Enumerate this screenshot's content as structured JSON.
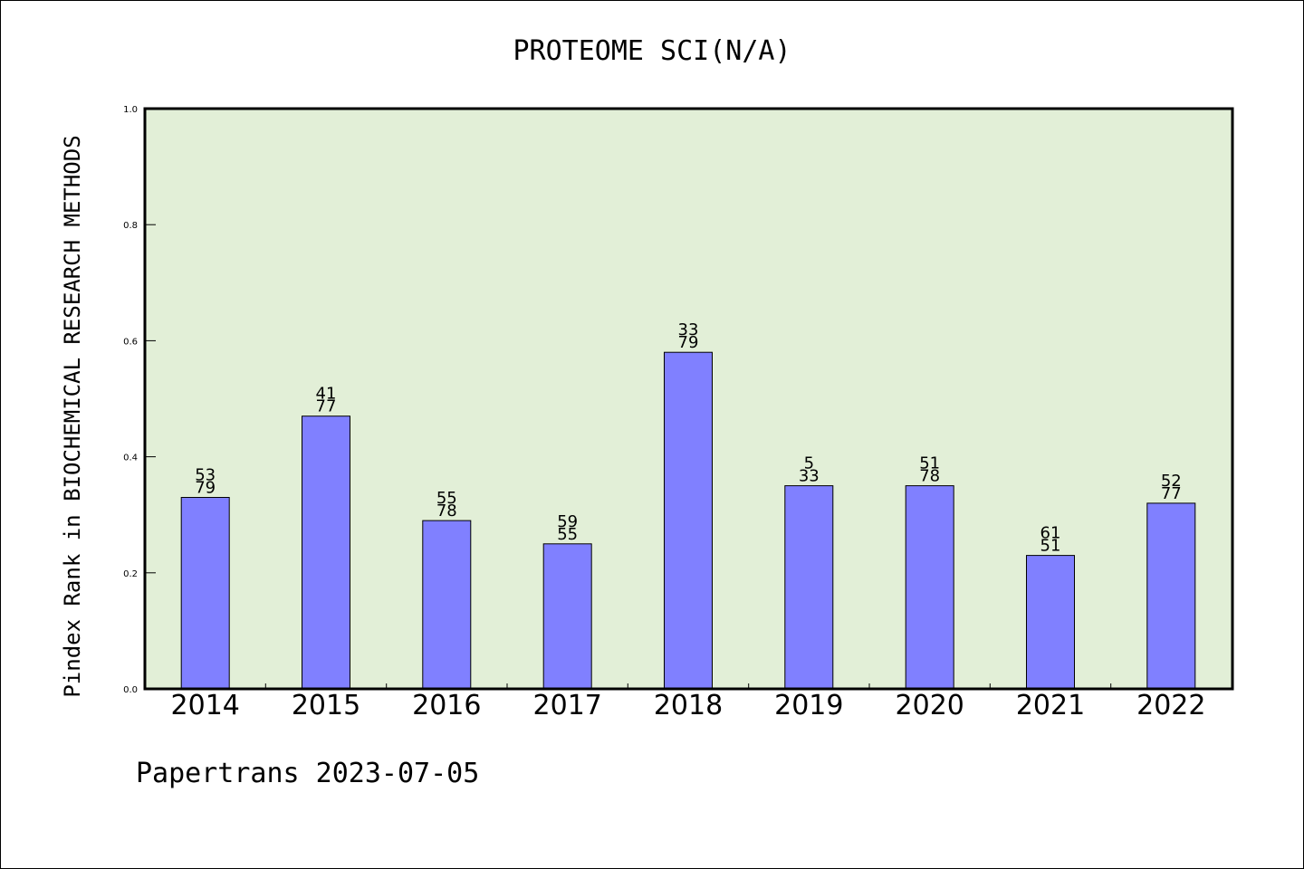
{
  "chart_data": {
    "type": "bar",
    "title": "PROTEOME SCI(N/A)",
    "xlabel": "",
    "ylabel": "Pindex Rank in BIOCHEMICAL RESEARCH METHODS",
    "ylim": [
      0,
      1.0
    ],
    "yticks": [
      "0.0",
      "0.2",
      "0.4",
      "0.6",
      "0.8",
      "1.0"
    ],
    "categories": [
      "2014",
      "2015",
      "2016",
      "2017",
      "2018",
      "2019",
      "2020",
      "2021",
      "2022"
    ],
    "values": [
      0.33,
      0.47,
      0.29,
      0.25,
      0.58,
      0.35,
      0.35,
      0.23,
      0.32
    ],
    "labels_top": [
      "53",
      "41",
      "55",
      "59",
      "33",
      "5",
      "51",
      "61",
      "52"
    ],
    "labels_bottom": [
      "79",
      "77",
      "78",
      "55",
      "79",
      "33",
      "78",
      "51",
      "77"
    ],
    "grid": false,
    "colors": {
      "plot_background": "#e2efd7",
      "bar_fill": "#8080ff",
      "bar_stroke": "#000000"
    }
  },
  "footer": "Papertrans 2023-07-05"
}
